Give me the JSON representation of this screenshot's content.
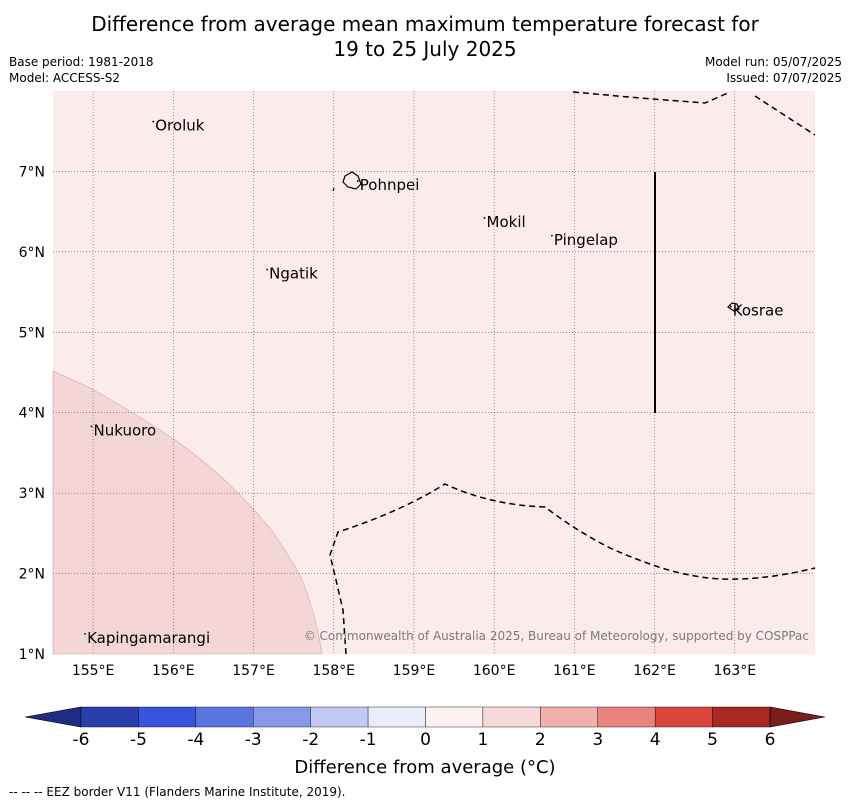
{
  "title": {
    "line1": "Difference from average mean maximum temperature forecast for",
    "line2": "19 to 25 July 2025"
  },
  "meta": {
    "base_period": "Base period: 1981-2018",
    "model": "Model: ACCESS-S2",
    "model_run": "Model run: 05/07/2025",
    "issued": "Issued: 07/07/2025"
  },
  "map": {
    "lon_range": [
      154.5,
      164.0
    ],
    "lat_range": [
      1.0,
      8.0
    ],
    "lon_ticks": [
      "155°E",
      "156°E",
      "157°E",
      "158°E",
      "159°E",
      "160°E",
      "161°E",
      "162°E",
      "163°E"
    ],
    "lat_ticks": [
      "1°N",
      "2°N",
      "3°N",
      "4°N",
      "5°N",
      "6°N",
      "7°N"
    ],
    "grid": true,
    "background_class": "0 to 1",
    "shaded_region_class": "1 to 2",
    "places": [
      {
        "name": "Oroluk",
        "lon": 155.75,
        "lat": 7.62
      },
      {
        "name": "Pohnpei",
        "lon": 158.3,
        "lat": 6.88
      },
      {
        "name": "Mokil",
        "lon": 159.88,
        "lat": 6.42
      },
      {
        "name": "Pingelap",
        "lon": 160.72,
        "lat": 6.2
      },
      {
        "name": "Ngatik",
        "lon": 157.17,
        "lat": 5.78
      },
      {
        "name": "Kosrae",
        "lon": 162.95,
        "lat": 5.32
      },
      {
        "name": "Nukuoro",
        "lon": 154.98,
        "lat": 3.83
      },
      {
        "name": "Kapingamarangi",
        "lon": 154.9,
        "lat": 1.25
      }
    ],
    "copyright": "© Commonwealth of Australia 2025, Bureau of Meteorology, supported by COSPPac"
  },
  "colorbar": {
    "ticks": [
      "-6",
      "-5",
      "-4",
      "-3",
      "-2",
      "-1",
      "0",
      "1",
      "2",
      "3",
      "4",
      "5",
      "6"
    ],
    "colors": [
      "#2a3fac",
      "#3556dc",
      "#5a75e0",
      "#8999ea",
      "#c3c9f4",
      "#eaebfb",
      "#fdf1f1",
      "#f8d9d9",
      "#f0b0ae",
      "#e8837d",
      "#da463d",
      "#a82822"
    ],
    "under_color": "#1f2c80",
    "over_color": "#7a1c18",
    "label": "Difference from average (°C)"
  },
  "footnote": "-- -- -- EEZ border V11 (Flanders Marine Institute, 2019).",
  "colors": {
    "background": "#fcebeb",
    "shaded_region": "#f5d6d6"
  }
}
